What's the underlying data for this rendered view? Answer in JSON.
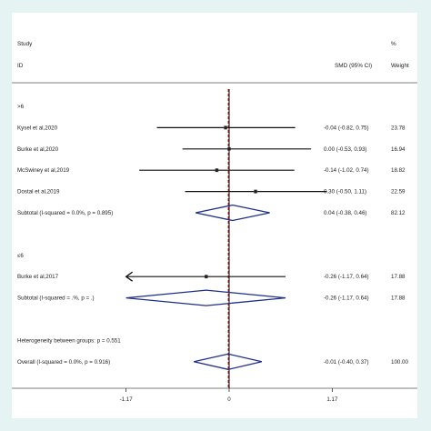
{
  "colors": {
    "frame": "#e6f3f3",
    "ci_line": "#111111",
    "diamond": "#1f2f8a",
    "null_line": "#000000",
    "overall_line": "#cc2222",
    "point": "#222222"
  },
  "chart_data": {
    "type": "forest",
    "header": {
      "col1_line1": "Study",
      "col1_line2": "ID",
      "col2": "SMD (95% CI)",
      "col3_line1": "%",
      "col3_line2": "Weight"
    },
    "xlim": [
      -1.6,
      1.6
    ],
    "xticks": [
      {
        "value": -1.17,
        "label": "-1.17"
      },
      {
        "value": 0,
        "label": "0"
      },
      {
        "value": 1.17,
        "label": "1.17"
      }
    ],
    "overall_effect": -0.01,
    "rows": [
      {
        "kind": "group",
        "label": ">6"
      },
      {
        "kind": "study",
        "label": "Kysel et al,2020",
        "est": -0.04,
        "lo": -0.82,
        "hi": 0.75,
        "ci_text": "-0.04 (-0.82, 0.75)",
        "weight": "23.78"
      },
      {
        "kind": "study",
        "label": "Burke et al,2020",
        "est": 0.0,
        "lo": -0.53,
        "hi": 0.93,
        "ci_text": "0.00 (-0.53, 0.93)",
        "weight": "16.94"
      },
      {
        "kind": "study",
        "label": "McSwiney et al,2019",
        "est": -0.14,
        "lo": -1.02,
        "hi": 0.74,
        "ci_text": "-0.14 (-1.02, 0.74)",
        "weight": "18.82"
      },
      {
        "kind": "study",
        "label": "Dostal et al,2019",
        "est": 0.3,
        "lo": -0.5,
        "hi": 1.11,
        "ci_text": "0.30 (-0.50, 1.11)",
        "weight": "22.59"
      },
      {
        "kind": "subtotal",
        "label": "Subtotal  (I-squared = 0.0%, p = 0.895)",
        "est": 0.04,
        "lo": -0.38,
        "hi": 0.46,
        "ci_text": "0.04 (-0.38, 0.46)",
        "weight": "82.12"
      },
      {
        "kind": "blank"
      },
      {
        "kind": "group",
        "label": "≤6"
      },
      {
        "kind": "study",
        "label": "Burke et al,2017",
        "est": -0.26,
        "lo": -1.17,
        "hi": 0.64,
        "ci_text": "-0.26 (-1.17, 0.64)",
        "weight": "17.88",
        "arrow_left": true
      },
      {
        "kind": "subtotal",
        "label": "Subtotal  (I-squared = .%, p = .)",
        "est": -0.26,
        "lo": -1.17,
        "hi": 0.64,
        "ci_text": "-0.26 (-1.17, 0.64)",
        "weight": "17.88"
      },
      {
        "kind": "blank"
      },
      {
        "kind": "note",
        "label": "Heterogeneity between groups: p = 0.551"
      },
      {
        "kind": "subtotal",
        "label": "Overall  (I-squared = 0.0%, p = 0.916)",
        "est": -0.01,
        "lo": -0.4,
        "hi": 0.37,
        "ci_text": "-0.01 (-0.40, 0.37)",
        "weight": "100.00"
      }
    ]
  }
}
